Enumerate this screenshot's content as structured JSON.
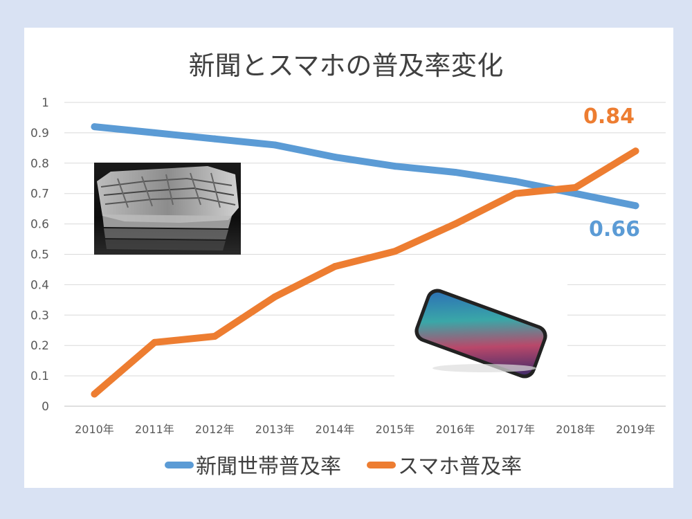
{
  "chart_data": {
    "type": "line",
    "title": "新聞とスマホの普及率変化",
    "categories": [
      "2010年",
      "2011年",
      "2012年",
      "2013年",
      "2014年",
      "2015年",
      "2016年",
      "2017年",
      "2018年",
      "2019年"
    ],
    "yticks": [
      "0",
      "0.1",
      "0.2",
      "0.3",
      "0.4",
      "0.5",
      "0.6",
      "0.7",
      "0.8",
      "0.9",
      "1"
    ],
    "ylim": [
      0,
      1
    ],
    "grid": true,
    "legend_position": "bottom",
    "series": [
      {
        "name": "新聞世帯普及率",
        "color": "#5b9bd5",
        "values": [
          0.92,
          0.9,
          0.88,
          0.86,
          0.82,
          0.79,
          0.77,
          0.74,
          0.7,
          0.66
        ],
        "end_label": "0.66"
      },
      {
        "name": "スマホ普及率",
        "color": "#ed7d31",
        "values": [
          0.04,
          0.21,
          0.23,
          0.36,
          0.46,
          0.51,
          0.6,
          0.7,
          0.72,
          0.84
        ],
        "end_label": "0.84"
      }
    ]
  },
  "images": {
    "newspaper": "newspaper-photo",
    "smartphone": "smartphone-photo"
  }
}
